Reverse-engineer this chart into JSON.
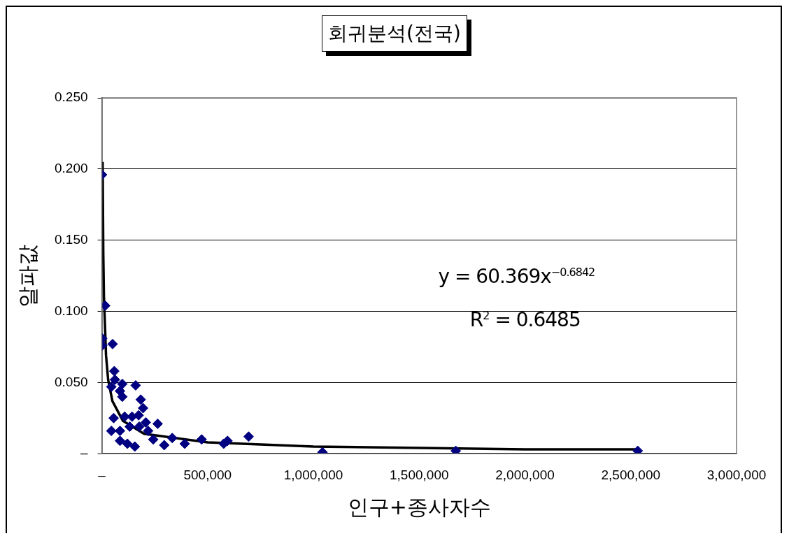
{
  "chart_data": {
    "type": "scatter",
    "title": "회귀분석(전국)",
    "xlabel": "인구+종사자수",
    "ylabel": "알파값",
    "xlim": [
      0,
      3000000
    ],
    "xticks": [
      {
        "value": 0,
        "label": "–"
      },
      {
        "value": 500000,
        "label": "500,000"
      },
      {
        "value": 1000000,
        "label": "1,000,000"
      },
      {
        "value": 1500000,
        "label": "1,500,000"
      },
      {
        "value": 2000000,
        "label": "2,000,000"
      },
      {
        "value": 2500000,
        "label": "2,500,000"
      },
      {
        "value": 3000000,
        "label": "3,000,000"
      }
    ],
    "ylim": [
      0,
      0.25
    ],
    "yticks": [
      {
        "value": 0,
        "label": "–"
      },
      {
        "value": 0.05,
        "label": "0.050"
      },
      {
        "value": 0.1,
        "label": "0.100"
      },
      {
        "value": 0.15,
        "label": "0.150"
      },
      {
        "value": 0.2,
        "label": "0.200"
      },
      {
        "value": 0.25,
        "label": "0.250"
      }
    ],
    "grid": "y",
    "legend": false,
    "annotations": [
      "y = 60.369x$^{−0.6842}$",
      "R$^{2}$ = 0.6485"
    ],
    "series": [
      {
        "type": "scatter",
        "color": "#000080",
        "marker": "diamond",
        "x": [
          1000,
          16000,
          2000,
          2000,
          51000,
          59000,
          62000,
          97000,
          45000,
          86000,
          97000,
          160000,
          184000,
          195000,
          56000,
          108000,
          143000,
          174000,
          208000,
          264000,
          45000,
          86000,
          132000,
          177000,
          219000,
          86000,
          121000,
          156000,
          243000,
          295000,
          333000,
          392000,
          472000,
          576000,
          594000,
          694000,
          1043000,
          1673000,
          2533000
        ],
        "values": [
          0.196,
          0.104,
          0.081,
          0.076,
          0.077,
          0.058,
          0.052,
          0.049,
          0.047,
          0.044,
          0.04,
          0.048,
          0.038,
          0.032,
          0.025,
          0.026,
          0.026,
          0.027,
          0.022,
          0.021,
          0.016,
          0.016,
          0.019,
          0.019,
          0.016,
          0.009,
          0.007,
          0.005,
          0.01,
          0.006,
          0.011,
          0.007,
          0.01,
          0.007,
          0.009,
          0.012,
          0.001,
          0.002,
          0.002
        ]
      },
      {
        "type": "line",
        "color": "#000000",
        "marker": "none",
        "line_style": "solid",
        "x": [
          4000,
          7000,
          10000,
          20000,
          30000,
          50000,
          100000,
          200000,
          500000,
          1000000,
          2000000,
          2533000
        ],
        "values": [
          0.205,
          0.141,
          0.111,
          0.069,
          0.052,
          0.037,
          0.023,
          0.014,
          0.008,
          0.005,
          0.003,
          0.003
        ]
      }
    ]
  }
}
